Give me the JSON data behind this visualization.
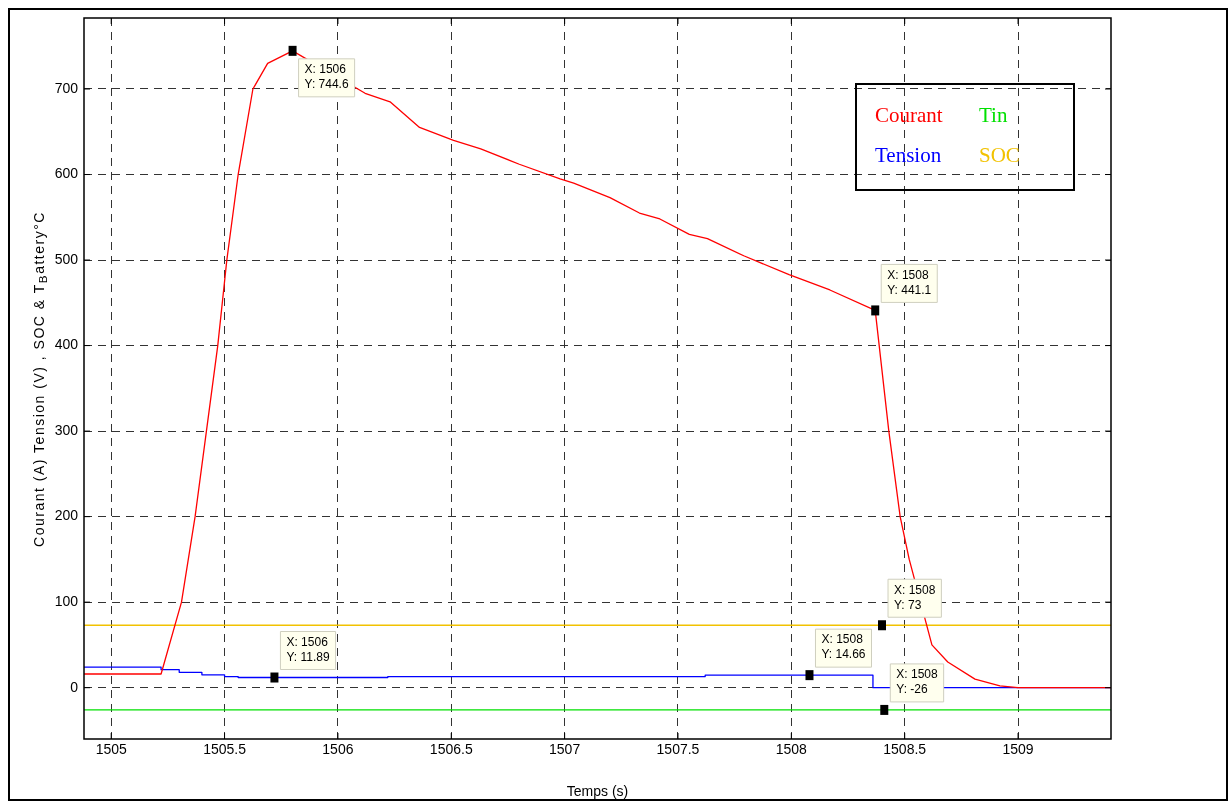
{
  "chart_data": {
    "type": "line",
    "xlabel": "Temps (s)",
    "ylabel": "Courant (A) Tension (V) , SOC & T$_{B}$attery°C",
    "xlim": [
      1504.88,
      1509.41
    ],
    "xticks": [
      {
        "value": 1505,
        "label": "1505"
      },
      {
        "value": 1505.5,
        "label": "1505.5"
      },
      {
        "value": 1506,
        "label": "1506"
      },
      {
        "value": 1506.5,
        "label": "1506.5"
      },
      {
        "value": 1507,
        "label": "1507"
      },
      {
        "value": 1507.5,
        "label": "1507.5"
      },
      {
        "value": 1508,
        "label": "1508"
      },
      {
        "value": 1508.5,
        "label": "1508.5"
      },
      {
        "value": 1509,
        "label": "1509"
      }
    ],
    "ylim": [
      -60,
      783
    ],
    "yticks": [
      0,
      100,
      200,
      300,
      400,
      500,
      600,
      700
    ],
    "grid": true,
    "legend": "top right",
    "line_style": "solid",
    "marker": "none",
    "series": [
      {
        "name": "Courant",
        "color": "#ff0000",
        "x": [
          1504.88,
          1505.1,
          1505.22,
          1505.31,
          1505.37,
          1505.42,
          1505.47,
          1505.51,
          1505.56,
          1505.625,
          1505.69,
          1505.8,
          1506.12,
          1506.23,
          1506.36,
          1506.51,
          1506.63,
          1506.8,
          1506.98,
          1507.04,
          1507.2,
          1507.33,
          1507.42,
          1507.55,
          1507.63,
          1507.79,
          1507.99,
          1508.17,
          1508.37,
          1508.43,
          1508.48,
          1508.52,
          1508.62,
          1508.69,
          1508.81,
          1508.92,
          1509,
          1509.41
        ],
        "values": [
          16,
          16,
          16,
          100,
          200,
          300,
          400,
          500,
          600,
          700,
          730,
          744.6,
          695,
          685,
          655,
          640,
          630,
          612,
          595,
          590,
          573,
          555,
          548,
          530,
          525,
          505,
          483,
          465,
          441.1,
          300,
          200,
          150,
          50,
          30,
          10,
          2,
          0,
          0
        ]
      },
      {
        "name": "Tin",
        "color": "#00e000",
        "x": [
          1504.88,
          1509.41
        ],
        "values": [
          -26,
          -26
        ]
      },
      {
        "name": "Tension",
        "type": "step",
        "color": "#0000ff",
        "x": [
          1504.88,
          1505.22,
          1505.3,
          1505.4,
          1505.5,
          1505.56,
          1506.22,
          1507.62,
          1508.36,
          1509.41
        ],
        "values": [
          24,
          21,
          18,
          15,
          13,
          11.89,
          13,
          14.66,
          0,
          0
        ]
      },
      {
        "name": "SOC",
        "color": "#f2c200",
        "x": [
          1504.88,
          1509.41
        ],
        "values": [
          73,
          73
        ]
      }
    ],
    "annotations": [
      {
        "text": "X: 1506\nY: 744.6",
        "x": 1505.8,
        "y": 744.6
      },
      {
        "text": "X: 1508\nY: 441.1",
        "x": 1508.37,
        "y": 441.1
      },
      {
        "text": "X: 1506\nY: 11.89",
        "x": 1505.72,
        "y": 11.89
      },
      {
        "text": "X: 1508\nY: 14.66",
        "x": 1508.08,
        "y": 14.66
      },
      {
        "text": "X: 1508\nY: 73",
        "x": 1508.4,
        "y": 73
      },
      {
        "text": "X: 1508\nY: -26",
        "x": 1508.41,
        "y": -26
      }
    ]
  }
}
